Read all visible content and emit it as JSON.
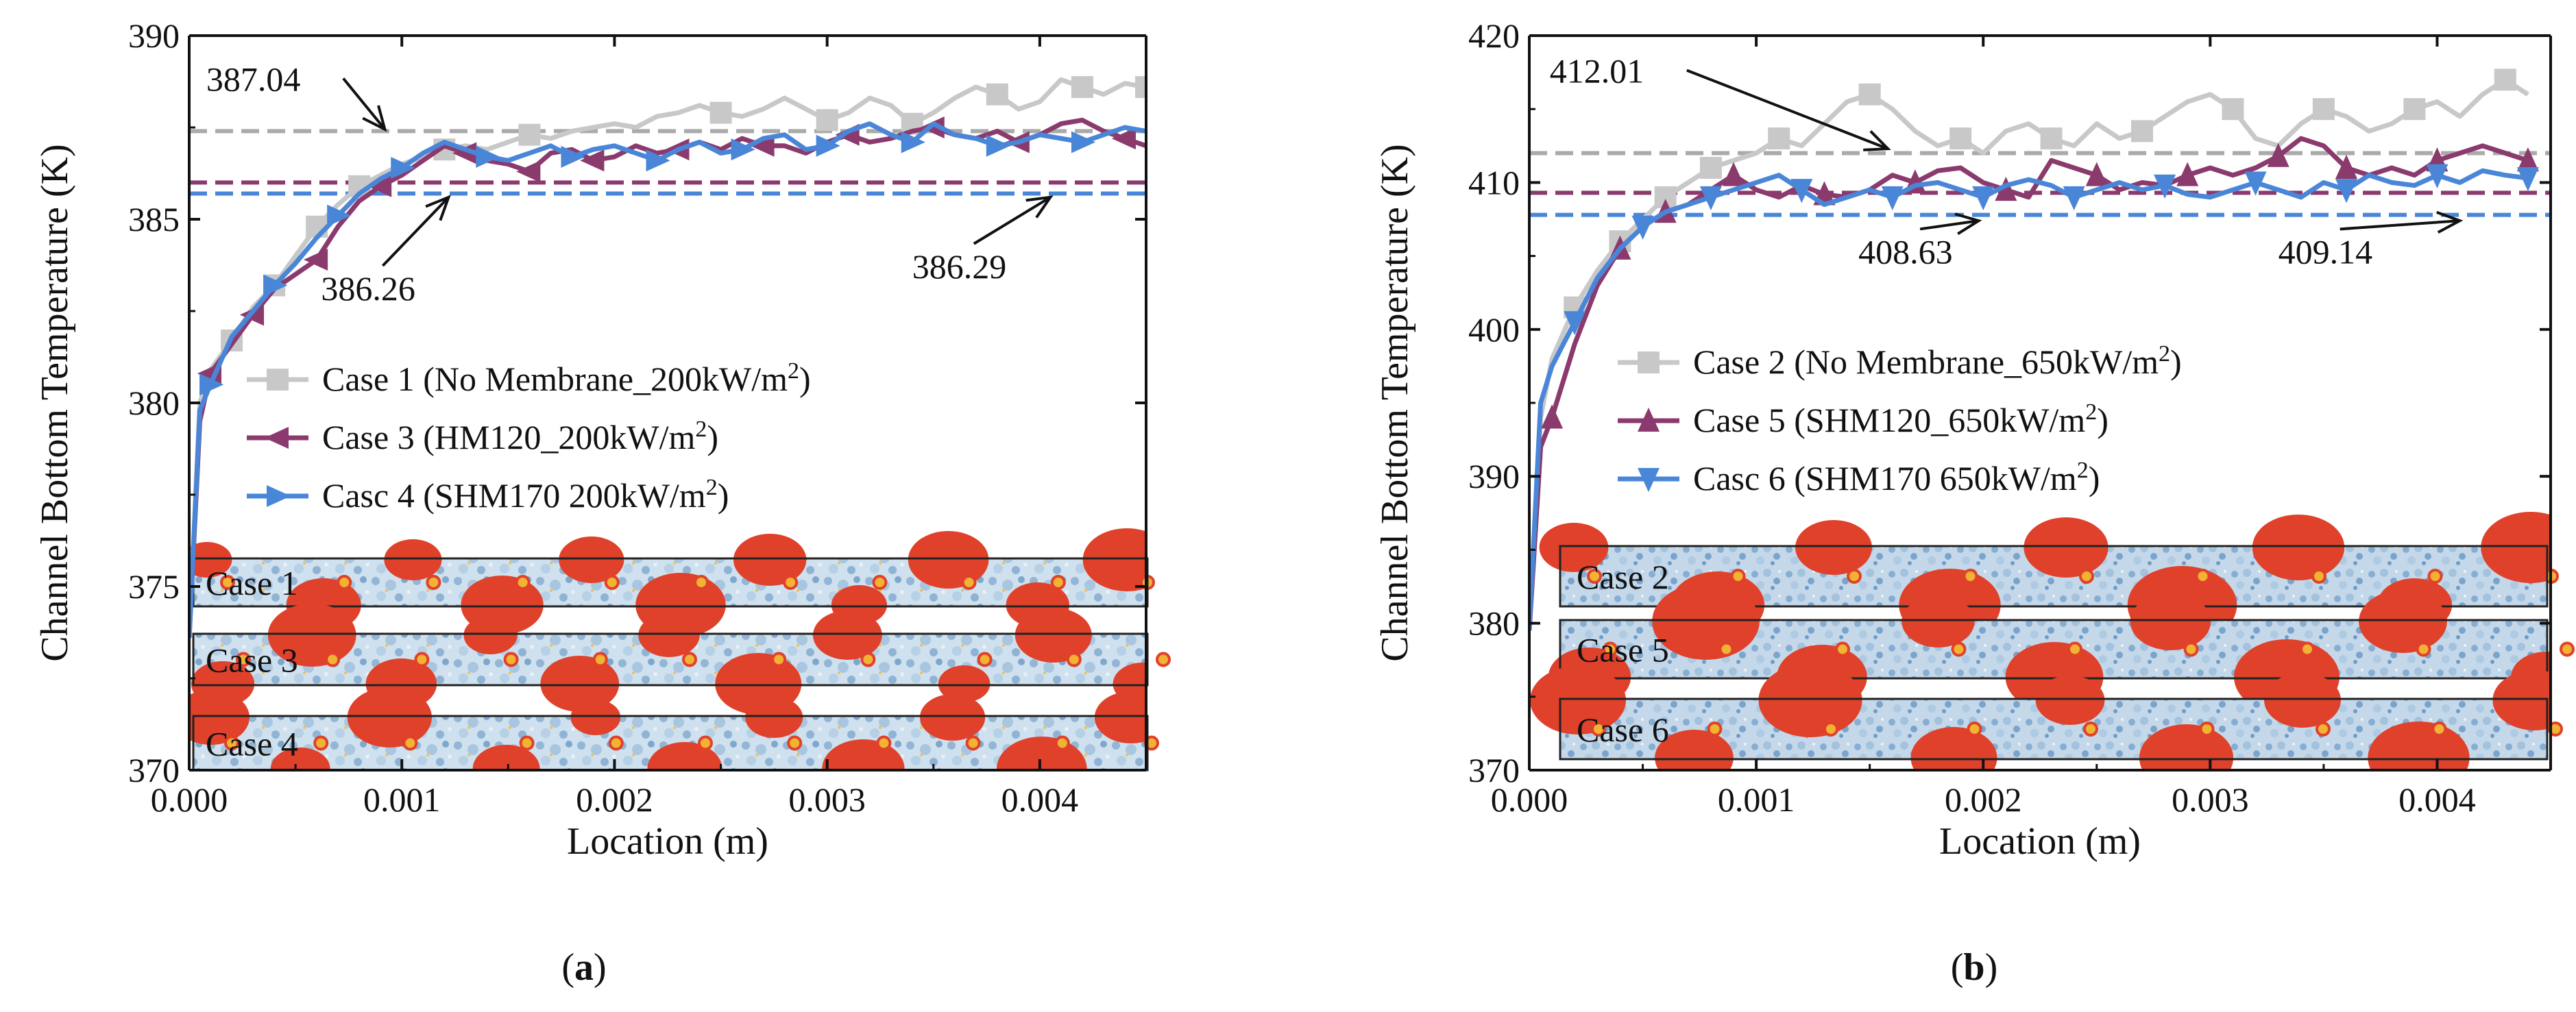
{
  "chart_data": [
    {
      "type": "line",
      "panel_label": "a",
      "xlabel": "Location (m)",
      "ylabel": "Channel Bottom Temperature (K)",
      "xlim": [
        0.0,
        0.0045
      ],
      "ylim": [
        370,
        390
      ],
      "x_ticks": [
        "0.000",
        "0.001",
        "0.002",
        "0.003",
        "0.004"
      ],
      "x_tick_values": [
        0.0,
        0.001,
        0.002,
        0.003,
        0.004
      ],
      "y_ticks": [
        "370",
        "375",
        "380",
        "385",
        "390"
      ],
      "y_tick_values": [
        370,
        375,
        380,
        385,
        390
      ],
      "series": [
        {
          "name": "Case 1 (No Membrane_200kW/m²)",
          "color": "#c8c8c8",
          "marker": "square",
          "x": [
            0.0,
            5e-05,
            0.0001,
            0.0002,
            0.0003,
            0.0004,
            0.0005,
            0.0006,
            0.0007,
            0.0008,
            0.0009,
            0.001,
            0.0011,
            0.0012,
            0.0013,
            0.0014,
            0.0015,
            0.0016,
            0.0017,
            0.0018,
            0.0019,
            0.002,
            0.0021,
            0.0022,
            0.0023,
            0.0024,
            0.0025,
            0.0026,
            0.0027,
            0.0028,
            0.0029,
            0.003,
            0.0031,
            0.0032,
            0.0033,
            0.0034,
            0.0035,
            0.0036,
            0.0037,
            0.0038,
            0.0039,
            0.004,
            0.0041,
            0.0042,
            0.0043,
            0.0044,
            0.0045
          ],
          "y": [
            373.6,
            380.0,
            380.9,
            381.7,
            382.6,
            383.2,
            384.0,
            384.8,
            385.4,
            385.9,
            386.2,
            386.5,
            386.7,
            386.9,
            387.0,
            386.9,
            387.1,
            387.3,
            387.2,
            387.4,
            387.5,
            387.6,
            387.5,
            387.8,
            387.9,
            388.1,
            387.9,
            387.8,
            388.0,
            388.3,
            388.0,
            387.7,
            387.9,
            388.3,
            388.1,
            387.6,
            387.9,
            388.3,
            388.6,
            388.4,
            388.0,
            388.2,
            388.8,
            388.6,
            388.4,
            388.7,
            388.6
          ],
          "marker_x": [
            0.0002,
            0.0004,
            0.0006,
            0.0008,
            0.0012,
            0.0016,
            0.0025,
            0.003,
            0.0034,
            0.0038,
            0.0042,
            0.0045
          ]
        },
        {
          "name": "Case 3 (HM120_200kW/m²)",
          "color": "#8b3a6e",
          "marker": "triangle-left",
          "x": [
            0.0,
            5e-05,
            0.0001,
            0.0002,
            0.0003,
            0.0004,
            0.0005,
            0.0006,
            0.0007,
            0.0008,
            0.0009,
            0.001,
            0.0011,
            0.0012,
            0.0013,
            0.0014,
            0.0015,
            0.0016,
            0.0017,
            0.0018,
            0.0019,
            0.002,
            0.0021,
            0.0022,
            0.0023,
            0.0024,
            0.0025,
            0.0026,
            0.0027,
            0.0028,
            0.0029,
            0.003,
            0.0031,
            0.0032,
            0.0033,
            0.0034,
            0.0035,
            0.0036,
            0.0037,
            0.0038,
            0.0039,
            0.004,
            0.0041,
            0.0042,
            0.0043,
            0.0044,
            0.0045
          ],
          "y": [
            373.6,
            379.5,
            380.8,
            381.6,
            382.4,
            383.1,
            383.5,
            383.9,
            384.8,
            385.5,
            385.9,
            386.2,
            386.6,
            387.0,
            386.8,
            386.6,
            386.5,
            386.3,
            386.8,
            386.9,
            386.6,
            386.7,
            387.0,
            386.8,
            386.9,
            387.1,
            386.9,
            387.2,
            387.0,
            387.0,
            386.8,
            387.1,
            387.3,
            387.1,
            387.2,
            387.4,
            387.5,
            387.3,
            387.2,
            387.4,
            387.1,
            387.3,
            387.6,
            387.7,
            387.4,
            387.2,
            387.0
          ],
          "marker_x": [
            0.0001,
            0.0003,
            0.0006,
            0.0009,
            0.0013,
            0.0016,
            0.0019,
            0.0023,
            0.0027,
            0.0031,
            0.0035,
            0.0039,
            0.0044
          ]
        },
        {
          "name": "Casc 4 (SHM170 200kW/m²)",
          "color": "#4a86d8",
          "marker": "triangle-right",
          "x": [
            0.0,
            5e-05,
            0.0001,
            0.0002,
            0.0003,
            0.0004,
            0.0005,
            0.0006,
            0.0007,
            0.0008,
            0.0009,
            0.001,
            0.0011,
            0.0012,
            0.0013,
            0.0014,
            0.0015,
            0.0016,
            0.0017,
            0.0018,
            0.0019,
            0.002,
            0.0021,
            0.0022,
            0.0023,
            0.0024,
            0.0025,
            0.0026,
            0.0027,
            0.0028,
            0.0029,
            0.003,
            0.0031,
            0.0032,
            0.0033,
            0.0034,
            0.0035,
            0.0036,
            0.0037,
            0.0038,
            0.0039,
            0.004,
            0.0041,
            0.0042,
            0.0043,
            0.0044,
            0.0045
          ],
          "y": [
            373.6,
            379.8,
            380.5,
            381.8,
            382.5,
            383.2,
            383.8,
            384.5,
            385.1,
            385.7,
            386.1,
            386.4,
            386.8,
            387.1,
            386.9,
            386.7,
            386.6,
            386.8,
            387.0,
            386.7,
            386.9,
            387.0,
            386.8,
            386.6,
            386.9,
            387.1,
            386.8,
            386.9,
            387.2,
            387.3,
            386.9,
            387.0,
            387.4,
            387.6,
            387.3,
            387.1,
            387.6,
            387.3,
            387.2,
            387.0,
            387.1,
            387.3,
            387.2,
            387.1,
            387.3,
            387.5,
            387.4
          ],
          "marker_x": [
            0.0001,
            0.0004,
            0.0007,
            0.001,
            0.0014,
            0.0018,
            0.0022,
            0.0026,
            0.003,
            0.0034,
            0.0038,
            0.0042
          ]
        }
      ],
      "reference_lines": [
        {
          "y": 387.4,
          "color": "#aaaaaa"
        },
        {
          "y": 386.0,
          "color": "#8b3a6e"
        },
        {
          "y": 385.7,
          "color": "#4a86d8"
        }
      ],
      "annotations": [
        {
          "text": "387.04",
          "x": 8e-05,
          "y": 388.5,
          "arrow_to": [
            0.00092,
            387.45
          ]
        },
        {
          "text": "386.26",
          "x": 0.00062,
          "y": 382.8,
          "arrow_to": [
            0.00122,
            385.6
          ]
        },
        {
          "text": "386.29",
          "x": 0.0034,
          "y": 383.4,
          "arrow_to": [
            0.00405,
            385.6
          ]
        }
      ],
      "legend": {
        "placement": "center-right"
      },
      "inset_labels": [
        "Case 1",
        "Case 3",
        "Case 4"
      ]
    },
    {
      "type": "line",
      "panel_label": "b",
      "xlabel": "Location (m)",
      "ylabel": "Channel Bottom Temperature (K)",
      "xlim": [
        0.0,
        0.0045
      ],
      "ylim": [
        370,
        420
      ],
      "x_ticks": [
        "0.000",
        "0.001",
        "0.002",
        "0.003",
        "0.004"
      ],
      "x_tick_values": [
        0.0,
        0.001,
        0.002,
        0.003,
        0.004
      ],
      "y_ticks": [
        "370",
        "380",
        "390",
        "400",
        "410",
        "420"
      ],
      "y_tick_values": [
        370,
        380,
        390,
        400,
        410,
        420
      ],
      "series": [
        {
          "name": "Case 2 (No Membrane_650kW/m²)",
          "color": "#c8c8c8",
          "marker": "square",
          "x": [
            0.0,
            5e-05,
            0.0001,
            0.0002,
            0.0003,
            0.0004,
            0.0005,
            0.0006,
            0.0007,
            0.0008,
            0.0009,
            0.001,
            0.0011,
            0.0012,
            0.0013,
            0.0014,
            0.0015,
            0.0016,
            0.0017,
            0.0018,
            0.0019,
            0.002,
            0.0021,
            0.0022,
            0.0023,
            0.0024,
            0.0025,
            0.0026,
            0.0027,
            0.0028,
            0.0029,
            0.003,
            0.0031,
            0.0032,
            0.0033,
            0.0034,
            0.0035,
            0.0036,
            0.0037,
            0.0038,
            0.0039,
            0.004,
            0.0041,
            0.0042,
            0.0043,
            0.0044
          ],
          "y": [
            379.5,
            394.0,
            398.0,
            401.5,
            404.0,
            406.0,
            407.5,
            409.0,
            410.0,
            411.0,
            411.5,
            412.0,
            413.0,
            412.5,
            414.0,
            415.5,
            416.0,
            415.0,
            413.5,
            412.5,
            413.0,
            412.0,
            413.5,
            414.0,
            413.0,
            412.5,
            414.0,
            413.0,
            413.5,
            414.5,
            415.5,
            416.0,
            415.0,
            413.0,
            412.5,
            414.0,
            415.0,
            414.5,
            413.5,
            414.0,
            415.0,
            415.5,
            414.5,
            416.0,
            417.0,
            416.0
          ],
          "marker_x": [
            0.0002,
            0.0004,
            0.0006,
            0.0008,
            0.0011,
            0.0015,
            0.0019,
            0.0023,
            0.0027,
            0.0031,
            0.0035,
            0.0039,
            0.0043
          ]
        },
        {
          "name": "Case 5 (SHM120_650kW/m²)",
          "color": "#8b3a6e",
          "marker": "triangle-up",
          "x": [
            0.0,
            5e-05,
            0.0001,
            0.0002,
            0.0003,
            0.0004,
            0.0005,
            0.0006,
            0.0007,
            0.0008,
            0.0009,
            0.001,
            0.0011,
            0.0012,
            0.0013,
            0.0014,
            0.0015,
            0.0016,
            0.0017,
            0.0018,
            0.0019,
            0.002,
            0.0021,
            0.0022,
            0.0023,
            0.0024,
            0.0025,
            0.0026,
            0.0027,
            0.0028,
            0.0029,
            0.003,
            0.0031,
            0.0032,
            0.0033,
            0.0034,
            0.0035,
            0.0036,
            0.0037,
            0.0038,
            0.0039,
            0.004,
            0.0041,
            0.0042,
            0.0043,
            0.0044
          ],
          "y": [
            379.5,
            392.0,
            394.0,
            399.0,
            403.0,
            405.5,
            407.0,
            408.0,
            408.5,
            409.5,
            410.5,
            409.5,
            409.0,
            409.8,
            409.2,
            409.0,
            409.5,
            410.5,
            410.0,
            410.8,
            411.0,
            410.0,
            409.5,
            409.0,
            411.5,
            411.0,
            410.5,
            409.5,
            410.0,
            409.8,
            410.5,
            411.0,
            410.5,
            411.0,
            411.8,
            413.0,
            412.5,
            411.0,
            410.5,
            411.0,
            410.5,
            411.5,
            412.0,
            412.5,
            412.0,
            411.5
          ],
          "marker_x": [
            0.0001,
            0.0004,
            0.0006,
            0.0009,
            0.0013,
            0.0017,
            0.0021,
            0.0025,
            0.0029,
            0.0033,
            0.0036,
            0.004,
            0.0044
          ]
        },
        {
          "name": "Casc 6 (SHM170 650kW/m²)",
          "color": "#4a86d8",
          "marker": "triangle-down",
          "x": [
            0.0,
            5e-05,
            0.0001,
            0.0002,
            0.0003,
            0.0004,
            0.0005,
            0.0006,
            0.0007,
            0.0008,
            0.0009,
            0.001,
            0.0011,
            0.0012,
            0.0013,
            0.0014,
            0.0015,
            0.0016,
            0.0017,
            0.0018,
            0.0019,
            0.002,
            0.0021,
            0.0022,
            0.0023,
            0.0024,
            0.0025,
            0.0026,
            0.0027,
            0.0028,
            0.0029,
            0.003,
            0.0031,
            0.0032,
            0.0033,
            0.0034,
            0.0035,
            0.0036,
            0.0037,
            0.0038,
            0.0039,
            0.004,
            0.0041,
            0.0042,
            0.0043,
            0.0044
          ],
          "y": [
            379.5,
            395.0,
            397.5,
            400.5,
            403.5,
            405.5,
            407.0,
            408.0,
            408.5,
            409.0,
            409.5,
            410.0,
            410.5,
            409.5,
            408.5,
            409.0,
            409.5,
            409.0,
            409.8,
            410.0,
            409.5,
            409.0,
            409.8,
            410.2,
            409.8,
            409.0,
            409.5,
            410.0,
            409.5,
            409.8,
            409.2,
            409.0,
            409.5,
            410.0,
            409.5,
            409.0,
            410.0,
            409.5,
            410.5,
            410.0,
            409.8,
            410.5,
            410.0,
            410.8,
            410.5,
            410.3
          ],
          "marker_x": [
            0.0002,
            0.0005,
            0.0008,
            0.0012,
            0.0016,
            0.002,
            0.0024,
            0.0028,
            0.0032,
            0.0036,
            0.004,
            0.0044
          ]
        }
      ],
      "reference_lines": [
        {
          "y": 412.0,
          "color": "#aaaaaa"
        },
        {
          "y": 409.3,
          "color": "#8b3a6e"
        },
        {
          "y": 407.8,
          "color": "#4a86d8"
        }
      ],
      "annotations": [
        {
          "text": "412.01",
          "x": 9e-05,
          "y": 416.8,
          "arrow_to": [
            0.00158,
            412.3
          ]
        },
        {
          "text": "408.63",
          "x": 0.00145,
          "y": 404.5,
          "arrow_to": [
            0.00198,
            407.4
          ]
        },
        {
          "text": "409.14",
          "x": 0.0033,
          "y": 404.5,
          "arrow_to": [
            0.0041,
            407.4
          ]
        }
      ],
      "legend": {
        "placement": "center-right"
      },
      "inset_labels": [
        "Case 2",
        "Case 5",
        "Case 6"
      ]
    }
  ]
}
